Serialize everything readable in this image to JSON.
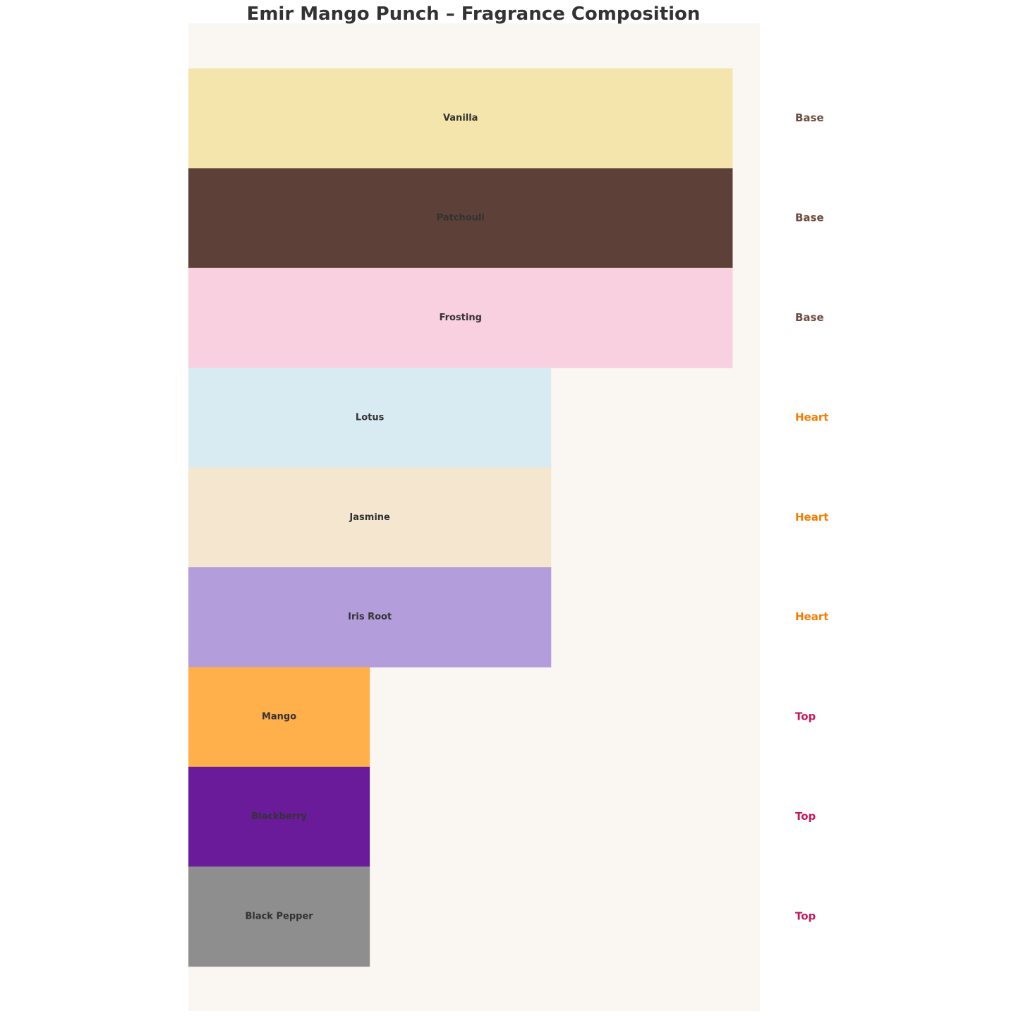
{
  "chart_data": {
    "type": "bar",
    "orientation": "horizontal",
    "title": "Emir Mango Punch – Fragrance Composition",
    "xlabel": "",
    "ylabel": "",
    "xlim": [
      0,
      3.15
    ],
    "grid": false,
    "legend": "none",
    "background": "#faf7f2",
    "categories": [
      "Vanilla",
      "Patchouli",
      "Frosting",
      "Lotus",
      "Jasmine",
      "Iris Root",
      "Mango",
      "Blackberry",
      "Black Pepper"
    ],
    "values": [
      3,
      3,
      3,
      2,
      2,
      2,
      1,
      1,
      1
    ],
    "layers": [
      "Base",
      "Base",
      "Base",
      "Heart",
      "Heart",
      "Heart",
      "Top",
      "Top",
      "Top"
    ],
    "bar_colors": [
      "#f3e5ab",
      "#5d4037",
      "#f8d0e0",
      "#d9ebf2",
      "#f5e6cf",
      "#b39ddb",
      "#ffb04a",
      "#6a1b9a",
      "#8e8e8e"
    ],
    "layer_colors": {
      "Base": "#6d4c41",
      "Heart": "#f57c00",
      "Top": "#c2185b"
    }
  }
}
